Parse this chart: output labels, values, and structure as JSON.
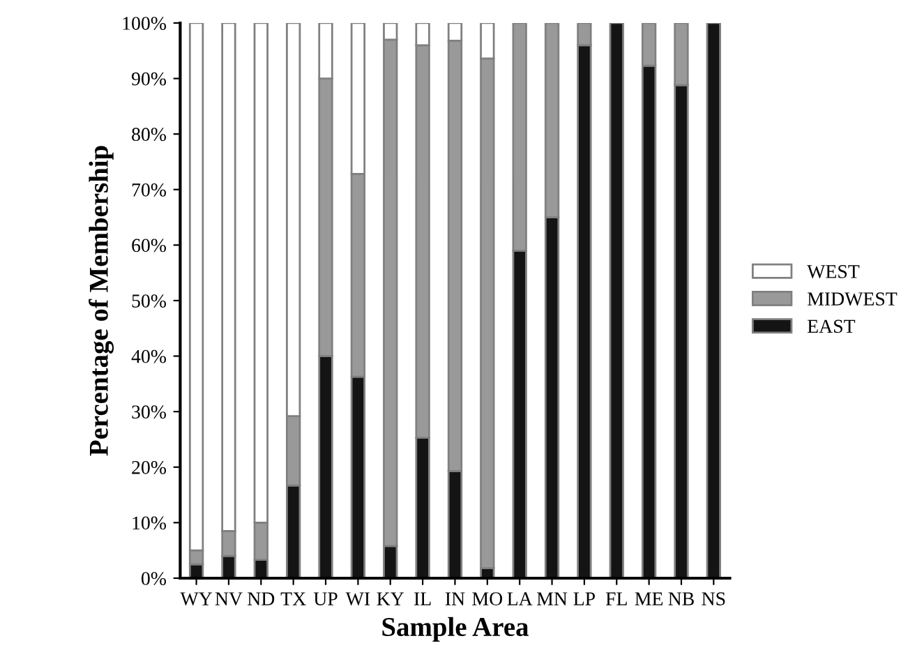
{
  "chart_data": {
    "type": "bar",
    "stacked": true,
    "xlabel": "Sample Area",
    "ylabel": "Percentage of Membership",
    "categories": [
      "WY",
      "NV",
      "ND",
      "TX",
      "UP",
      "WI",
      "KY",
      "IL",
      "IN",
      "MO",
      "LA",
      "MN",
      "LP",
      "FL",
      "ME",
      "NB",
      "NS"
    ],
    "series": [
      {
        "name": "EAST",
        "color": "#141414",
        "values": [
          2.5,
          4,
          3.3,
          16.7,
          40,
          36.3,
          5.8,
          25.3,
          19.3,
          1.8,
          59,
          65,
          96,
          100,
          92.3,
          88.8,
          100
        ]
      },
      {
        "name": "MIDWEST",
        "color": "#999999",
        "values": [
          2.5,
          4.5,
          6.7,
          12.5,
          50,
          36.5,
          91.2,
          70.7,
          77.5,
          91.8,
          41,
          35,
          4,
          0,
          7.7,
          11.2,
          0
        ]
      },
      {
        "name": "WEST",
        "color": "#ffffff",
        "values": [
          95,
          91.5,
          90,
          70.8,
          10,
          27.2,
          3,
          4,
          3.2,
          6.4,
          0,
          0,
          0,
          0,
          0,
          0,
          0
        ]
      }
    ],
    "ylim": [
      0,
      100
    ],
    "yticks": [
      {
        "value": 0,
        "label": "0%"
      },
      {
        "value": 10,
        "label": "10%"
      },
      {
        "value": 20,
        "label": "20%"
      },
      {
        "value": 30,
        "label": "30%"
      },
      {
        "value": 40,
        "label": "40%"
      },
      {
        "value": 50,
        "label": "50%"
      },
      {
        "value": 60,
        "label": "60%"
      },
      {
        "value": 70,
        "label": "70%"
      },
      {
        "value": 80,
        "label": "80%"
      },
      {
        "value": 90,
        "label": "90%"
      },
      {
        "value": 100,
        "label": "100%"
      }
    ],
    "grid": false,
    "legend": "right"
  }
}
